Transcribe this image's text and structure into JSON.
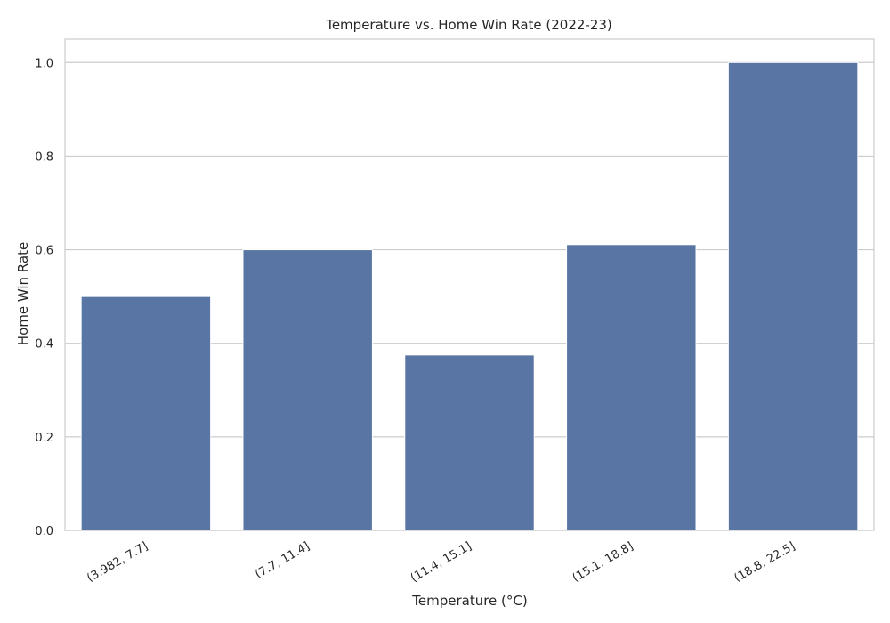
{
  "chart_data": {
    "type": "bar",
    "title": "Temperature vs. Home Win Rate (2022-23)",
    "xlabel": "Temperature (°C)",
    "ylabel": "Home Win Rate",
    "categories": [
      "(3.982, 7.7]",
      "(7.7, 11.4]",
      "(11.4, 15.1]",
      "(15.1, 18.8]",
      "(18.8, 22.5]"
    ],
    "values": [
      0.5,
      0.6,
      0.375,
      0.611,
      1.0
    ],
    "ylim": [
      0,
      1.05
    ],
    "yticks": [
      0.0,
      0.2,
      0.4,
      0.6,
      0.8,
      1.0
    ],
    "ytick_labels": [
      "0.0",
      "0.2",
      "0.4",
      "0.6",
      "0.8",
      "1.0"
    ],
    "grid": "horizontal",
    "legend": "none",
    "colors": {
      "bar": "#5975a4",
      "grid": "#cccccc",
      "frame": "#cccccc",
      "text": "#262626"
    }
  }
}
